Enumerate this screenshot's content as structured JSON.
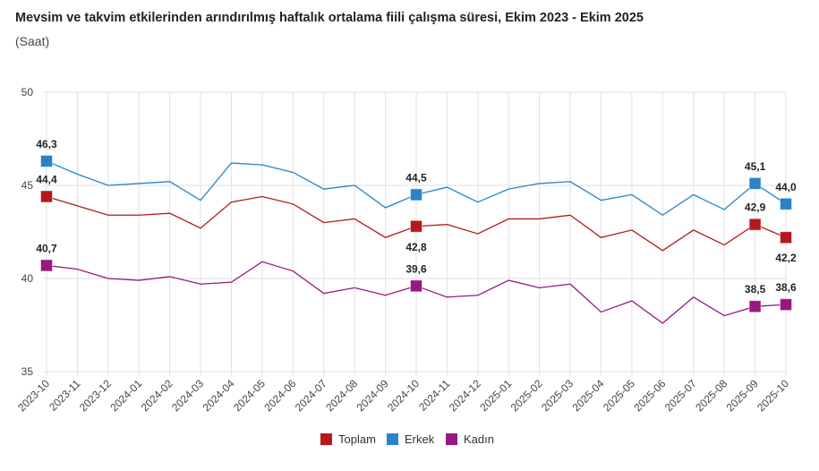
{
  "chart_data": {
    "type": "line",
    "title": "Mevsim ve takvim etkilerinden arındırılmış haftalık ortalama fiili çalışma süresi, Ekim 2023 - Ekim 2025",
    "subtitle": "(Saat)",
    "xlabel": "",
    "ylabel": "",
    "ylim": [
      35,
      50
    ],
    "yticks": [
      35,
      40,
      45,
      50
    ],
    "grid": true,
    "legend": "bottom",
    "categories": [
      "2023-10",
      "2023-11",
      "2023-12",
      "2024-01",
      "2024-02",
      "2024-03",
      "2024-04",
      "2024-05",
      "2024-06",
      "2024-07",
      "2024-08",
      "2024-09",
      "2024-10",
      "2024-11",
      "2024-12",
      "2025-01",
      "2025-02",
      "2025-03",
      "2025-04",
      "2025-05",
      "2025-06",
      "2025-07",
      "2025-08",
      "2025-09",
      "2025-10"
    ],
    "series": [
      {
        "name": "Toplam",
        "color": "#b5191c",
        "values": [
          44.4,
          43.9,
          43.4,
          43.4,
          43.5,
          42.7,
          44.1,
          44.4,
          44.0,
          43.0,
          43.2,
          42.2,
          42.8,
          42.9,
          42.4,
          43.2,
          43.2,
          43.4,
          42.2,
          42.6,
          41.5,
          42.6,
          41.8,
          42.9,
          42.2
        ],
        "labels": [
          {
            "index": 0,
            "text": "44,4",
            "pos": "above"
          },
          {
            "index": 12,
            "text": "42,8",
            "pos": "below"
          },
          {
            "index": 23,
            "text": "42,9",
            "pos": "above"
          },
          {
            "index": 24,
            "text": "42,2",
            "pos": "below"
          }
        ]
      },
      {
        "name": "Erkek",
        "color": "#2a82c9",
        "values": [
          46.3,
          45.6,
          45.0,
          45.1,
          45.2,
          44.2,
          46.2,
          46.1,
          45.7,
          44.8,
          45.0,
          43.8,
          44.5,
          44.9,
          44.1,
          44.8,
          45.1,
          45.2,
          44.2,
          44.5,
          43.4,
          44.5,
          43.7,
          45.1,
          44.0
        ],
        "labels": [
          {
            "index": 0,
            "text": "46,3",
            "pos": "above"
          },
          {
            "index": 12,
            "text": "44,5",
            "pos": "above"
          },
          {
            "index": 23,
            "text": "45,1",
            "pos": "above"
          },
          {
            "index": 24,
            "text": "44,0",
            "pos": "above"
          }
        ]
      },
      {
        "name": "Kadın",
        "color": "#97197f",
        "values": [
          40.7,
          40.5,
          40.0,
          39.9,
          40.1,
          39.7,
          39.8,
          40.9,
          40.4,
          39.2,
          39.5,
          39.1,
          39.6,
          39.0,
          39.1,
          39.9,
          39.5,
          39.7,
          38.2,
          38.8,
          37.6,
          39.0,
          38.0,
          38.5,
          38.6
        ],
        "labels": [
          {
            "index": 0,
            "text": "40,7",
            "pos": "above"
          },
          {
            "index": 12,
            "text": "39,6",
            "pos": "above"
          },
          {
            "index": 23,
            "text": "38,5",
            "pos": "above"
          },
          {
            "index": 24,
            "text": "38,6",
            "pos": "above"
          }
        ]
      }
    ]
  }
}
